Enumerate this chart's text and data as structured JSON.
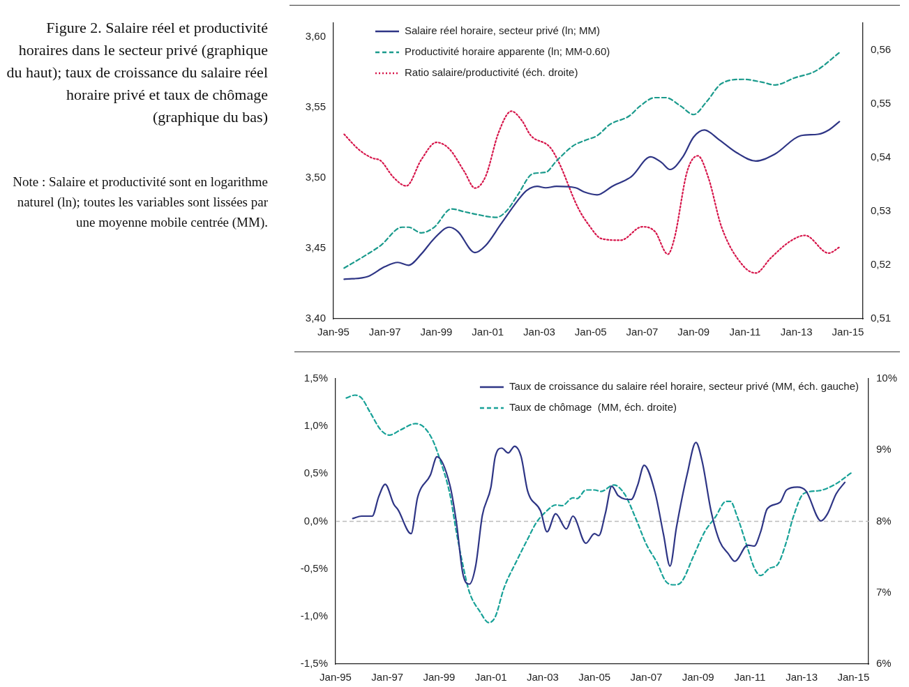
{
  "chart_data": [
    {
      "type": "line",
      "title": "Figure 2. Salaire réel et productivité horaires dans le secteur privé (graphique du haut); taux de croissance du salaire réel horaire privé et taux de chômage (graphique du bas)",
      "annotations": [
        "Note : Salaire et productivité sont en logarithme naturel (ln); toutes les variables sont lissées par une moyenne mobile centrée (MM)."
      ],
      "xlim": [
        "1995-01",
        "2015-08"
      ],
      "xticks": [
        {
          "value": "1995-01",
          "label": "Jan-95"
        },
        {
          "value": "1997-01",
          "label": "Jan-97"
        },
        {
          "value": "1999-01",
          "label": "Jan-99"
        },
        {
          "value": "2001-01",
          "label": "Jan-01"
        },
        {
          "value": "2003-01",
          "label": "Jan-03"
        },
        {
          "value": "2005-01",
          "label": "Jan-05"
        },
        {
          "value": "2007-01",
          "label": "Jan-07"
        },
        {
          "value": "2009-01",
          "label": "Jan-09"
        },
        {
          "value": "2011-01",
          "label": "Jan-11"
        },
        {
          "value": "2013-01",
          "label": "Jan-13"
        },
        {
          "value": "2015-01",
          "label": "Jan-15"
        }
      ],
      "ylim": [
        3.4,
        3.61
      ],
      "yticks": [
        {
          "value": 3.4,
          "label": "3,40"
        },
        {
          "value": 3.45,
          "label": "3,45"
        },
        {
          "value": 3.5,
          "label": "3,50"
        },
        {
          "value": 3.55,
          "label": "3,55"
        },
        {
          "value": 3.6,
          "label": "3,60"
        }
      ],
      "y2lim": [
        0.51,
        0.565
      ],
      "y2ticks": [
        {
          "value": 0.51,
          "label": "0,51"
        },
        {
          "value": 0.52,
          "label": "0,52"
        },
        {
          "value": 0.53,
          "label": "0,53"
        },
        {
          "value": 0.54,
          "label": "0,54"
        },
        {
          "value": 0.55,
          "label": "0,55"
        },
        {
          "value": 0.56,
          "label": "0,56"
        }
      ],
      "grid": false,
      "legend": "top",
      "series": [
        {
          "name": "Salaire réel horaire, secteur privé (ln; MM)",
          "color": "#2e3585",
          "line_style": "solid",
          "x": [
            "1995-06",
            "1996-05",
            "1997-01",
            "1997-07",
            "1997-12",
            "1998-06",
            "1998-12",
            "1999-07",
            "1999-11",
            "2000-07",
            "2000-12",
            "2001-07",
            "2002-03",
            "2002-07",
            "2002-12",
            "2003-04",
            "2003-09",
            "2004-06",
            "2004-10",
            "2005-04",
            "2005-11",
            "2006-08",
            "2007-05",
            "2007-10",
            "2008-02",
            "2008-08",
            "2009-01",
            "2009-06",
            "2010-01",
            "2010-09",
            "2011-06",
            "2012-03",
            "2013-03",
            "2013-11",
            "2014-04",
            "2014-09"
          ],
          "values": [
            3.428,
            3.43,
            3.437,
            3.44,
            3.438,
            3.446,
            3.457,
            3.465,
            3.462,
            3.447,
            3.452,
            3.467,
            3.484,
            3.491,
            3.494,
            3.493,
            3.494,
            3.493,
            3.49,
            3.488,
            3.494,
            3.501,
            3.515,
            3.511,
            3.506,
            3.515,
            3.529,
            3.534,
            3.527,
            3.518,
            3.512,
            3.517,
            3.53,
            3.531,
            3.534,
            3.54
          ]
        },
        {
          "name": "Productivité horaire apparente (ln; MM-0.60)",
          "color": "#1a9a8c",
          "line_style": "dashed",
          "x": [
            "1995-06",
            "1996-05",
            "1996-11",
            "1997-09",
            "1997-12",
            "1998-06",
            "1998-12",
            "1999-08",
            "2000-02",
            "2000-08",
            "2001-05",
            "2001-10",
            "2002-03",
            "2002-10",
            "2003-04",
            "2003-09",
            "2004-05",
            "2004-11",
            "2005-04",
            "2005-10",
            "2006-07",
            "2006-12",
            "2007-07",
            "2007-12",
            "2008-07",
            "2009-01",
            "2009-07",
            "2010-02",
            "2010-12",
            "2011-09",
            "2012-03",
            "2012-12",
            "2013-10",
            "2014-09"
          ],
          "values": [
            3.436,
            3.446,
            3.452,
            3.465,
            3.465,
            3.461,
            3.465,
            3.478,
            3.476,
            3.474,
            3.472,
            3.477,
            3.488,
            3.503,
            3.504,
            3.512,
            3.523,
            3.527,
            3.53,
            3.538,
            3.544,
            3.551,
            3.557,
            3.557,
            3.551,
            3.545,
            3.554,
            3.567,
            3.57,
            3.568,
            3.566,
            3.571,
            3.576,
            3.589
          ]
        },
        {
          "name": "Ratio salaire/productivité (éch. droite)",
          "color": "#d6154a",
          "line_style": "dotted",
          "axis": "y2",
          "x": [
            "1995-06",
            "1996-01",
            "1996-07",
            "1996-11",
            "1997-05",
            "1997-11",
            "1998-06",
            "1999-01",
            "1999-07",
            "2000-02",
            "2000-07",
            "2000-12",
            "2001-06",
            "2001-12",
            "2002-05",
            "2002-09",
            "2003-06",
            "2003-10",
            "2004-07",
            "2004-12",
            "2005-06",
            "2006-03",
            "2007-01",
            "2007-07",
            "2008-01",
            "2008-04",
            "2008-10",
            "2009-03",
            "2009-08",
            "2010-02",
            "2010-12",
            "2011-06",
            "2012-01",
            "2012-10",
            "2013-05",
            "2014-04",
            "2014-09"
          ],
          "values": [
            0.5443,
            0.5414,
            0.5399,
            0.5394,
            0.5363,
            0.5347,
            0.5396,
            0.5428,
            0.5416,
            0.5374,
            0.5343,
            0.5365,
            0.5446,
            0.5486,
            0.5468,
            0.5441,
            0.5419,
            0.5392,
            0.5307,
            0.5275,
            0.5249,
            0.5246,
            0.5271,
            0.5262,
            0.522,
            0.5249,
            0.5374,
            0.5403,
            0.5361,
            0.5271,
            0.5199,
            0.5185,
            0.5213,
            0.5244,
            0.5255,
            0.5222,
            0.5233
          ]
        }
      ]
    },
    {
      "type": "line",
      "xlim": [
        "1995-01",
        "2015-08"
      ],
      "xticks": [
        {
          "value": "1995-01",
          "label": "Jan-95"
        },
        {
          "value": "1997-01",
          "label": "Jan-97"
        },
        {
          "value": "1999-01",
          "label": "Jan-99"
        },
        {
          "value": "2001-01",
          "label": "Jan-01"
        },
        {
          "value": "2003-01",
          "label": "Jan-03"
        },
        {
          "value": "2005-01",
          "label": "Jan-05"
        },
        {
          "value": "2007-01",
          "label": "Jan-07"
        },
        {
          "value": "2009-01",
          "label": "Jan-09"
        },
        {
          "value": "2011-01",
          "label": "Jan-11"
        },
        {
          "value": "2013-01",
          "label": "Jan-13"
        },
        {
          "value": "2015-01",
          "label": "Jan-15"
        }
      ],
      "ylim": [
        -1.5,
        1.5
      ],
      "yticks": [
        {
          "value": -1.5,
          "label": "-1,5%"
        },
        {
          "value": -1.0,
          "label": "-1,0%"
        },
        {
          "value": -0.5,
          "label": "-0,5%"
        },
        {
          "value": 0,
          "label": "0,0%"
        },
        {
          "value": 0.5,
          "label": "0,5%"
        },
        {
          "value": 1.0,
          "label": "1,0%"
        },
        {
          "value": 1.5,
          "label": "1,5%"
        }
      ],
      "y2lim": [
        6,
        10
      ],
      "y2ticks": [
        {
          "value": 6,
          "label": "6%"
        },
        {
          "value": 7,
          "label": "7%"
        },
        {
          "value": 8,
          "label": "8%"
        },
        {
          "value": 9,
          "label": "9%"
        },
        {
          "value": 10,
          "label": "10%"
        }
      ],
      "grid": false,
      "legend": "top right",
      "ref_lines": [
        {
          "axis": "y",
          "value": 0,
          "color": "#bbbbbb",
          "line_style": "dashed"
        }
      ],
      "series": [
        {
          "name": "Taux de croissance du salaire réel horaire, secteur privé (MM, éch. gauche)",
          "color": "#2e3585",
          "line_style": "solid",
          "x": [
            "1995-09",
            "1996-01",
            "1996-06",
            "1996-09",
            "1996-12",
            "1997-04",
            "1997-06",
            "1997-12",
            "1998-03",
            "1998-09",
            "1998-12",
            "1999-06",
            "1999-09",
            "1999-12",
            "2000-03",
            "2000-06",
            "2000-09",
            "2001-01",
            "2001-03",
            "2001-06",
            "2001-09",
            "2001-12",
            "2002-03",
            "2002-06",
            "2002-12",
            "2003-03",
            "2003-07",
            "2003-12",
            "2004-03",
            "2004-09",
            "2005-01",
            "2005-03",
            "2005-06",
            "2005-09",
            "2005-12",
            "2006-06",
            "2006-09",
            "2006-12",
            "2007-05",
            "2007-09",
            "2007-12",
            "2008-03",
            "2008-08",
            "2008-12",
            "2009-03",
            "2009-07",
            "2009-11",
            "2010-03",
            "2010-06",
            "2010-12",
            "2011-03",
            "2011-06",
            "2011-09",
            "2012-03",
            "2012-06",
            "2012-11",
            "2013-03",
            "2013-10",
            "2014-01",
            "2014-05",
            "2014-09"
          ],
          "values": [
            0.03,
            0.055,
            0.055,
            0.26,
            0.39,
            0.18,
            0.12,
            -0.13,
            0.25,
            0.49,
            0.68,
            0.38,
            -0.01,
            -0.55,
            -0.66,
            -0.46,
            0.06,
            0.36,
            0.68,
            0.77,
            0.72,
            0.79,
            0.68,
            0.32,
            0.11,
            -0.11,
            0.08,
            -0.08,
            0.055,
            -0.23,
            -0.13,
            -0.15,
            0.08,
            0.37,
            0.27,
            0.23,
            0.38,
            0.59,
            0.31,
            -0.14,
            -0.47,
            -0.06,
            0.5,
            0.83,
            0.62,
            0.11,
            -0.21,
            -0.34,
            -0.42,
            -0.25,
            -0.26,
            -0.11,
            0.13,
            0.2,
            0.33,
            0.36,
            0.32,
            0.005,
            0.08,
            0.29,
            0.41
          ]
        },
        {
          "name": "Taux de chômage  (MM, éch. droite)",
          "color": "#17a197",
          "line_style": "dashed",
          "axis": "y2",
          "x": [
            "1995-06",
            "1995-10",
            "1996-01",
            "1996-05",
            "1996-10",
            "1997-02",
            "1997-07",
            "1998-02",
            "1998-06",
            "1998-10",
            "1999-01",
            "1999-06",
            "1999-09",
            "1999-12",
            "2000-03",
            "2000-08",
            "2000-12",
            "2001-03",
            "2001-07",
            "2002-01",
            "2002-06",
            "2002-10",
            "2003-03",
            "2003-07",
            "2003-10",
            "2004-03",
            "2004-05",
            "2004-09",
            "2005-01",
            "2005-04",
            "2005-10",
            "2006-03",
            "2006-08",
            "2007-01",
            "2007-06",
            "2007-10",
            "2008-02",
            "2008-05",
            "2008-11",
            "2009-04",
            "2009-09",
            "2010-02",
            "2010-04",
            "2010-07",
            "2010-12",
            "2011-03",
            "2011-06",
            "2011-10",
            "2012-02",
            "2012-06",
            "2012-09",
            "2013-02",
            "2013-09",
            "2014-04",
            "2014-12"
          ],
          "values": [
            9.73,
            9.77,
            9.73,
            9.53,
            9.28,
            9.21,
            9.28,
            9.37,
            9.32,
            9.14,
            8.9,
            8.38,
            7.85,
            7.39,
            7.01,
            6.73,
            6.58,
            6.66,
            7.06,
            7.45,
            7.75,
            7.98,
            8.15,
            8.23,
            8.22,
            8.33,
            8.32,
            8.44,
            8.44,
            8.42,
            8.51,
            8.38,
            8.05,
            7.68,
            7.42,
            7.16,
            7.11,
            7.14,
            7.52,
            7.85,
            8.06,
            8.28,
            8.28,
            8.08,
            7.62,
            7.35,
            7.24,
            7.34,
            7.4,
            7.72,
            8.05,
            8.39,
            8.43,
            8.51,
            8.68
          ]
        }
      ]
    }
  ]
}
